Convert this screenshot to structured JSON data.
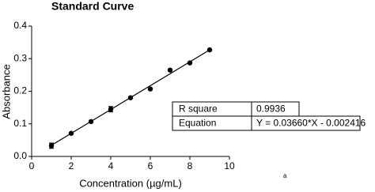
{
  "chart_data": {
    "type": "scatter",
    "title": "Standard Curve",
    "x_label": "Concentration (µg/mL)",
    "y_label": "Absorbance",
    "x": [
      1,
      2,
      3,
      4,
      5,
      6,
      7,
      8,
      9
    ],
    "values": [
      0.033,
      0.071,
      0.107,
      0.145,
      0.18,
      0.207,
      0.265,
      0.287,
      0.327
    ],
    "errors": [
      0.008,
      0.002,
      0.002,
      0.008,
      0.002,
      0.002,
      0.002,
      0.002,
      0.002
    ],
    "color": "#000000",
    "fit": {
      "x": [
        1,
        9
      ],
      "values": [
        0.0342,
        0.327
      ]
    },
    "xlim": [
      0,
      10
    ],
    "xticks": [
      0,
      2,
      4,
      6,
      8,
      10
    ],
    "ylim": [
      0,
      0.4
    ],
    "yticks": [
      {
        "value": 0,
        "label": "0.0"
      },
      0.1,
      0.2,
      0.3,
      0.4
    ],
    "table": {
      "rows": [
        [
          "R square",
          "0.9936"
        ],
        [
          "Equation",
          "Y = 0.03660*X - 0.002416"
        ]
      ]
    },
    "note": "a"
  }
}
